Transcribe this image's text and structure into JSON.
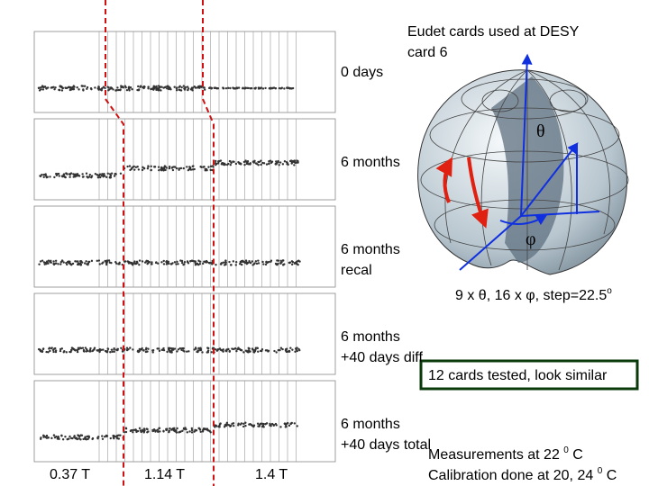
{
  "header": {
    "lines": [
      "Eudet cards used at DESY",
      "card 6"
    ]
  },
  "panels": [
    {
      "label": [
        "0 days"
      ]
    },
    {
      "label": [
        "6 months"
      ]
    },
    {
      "label": [
        "6 months",
        "recal"
      ]
    },
    {
      "label": [
        "6 months",
        "+40 days diff"
      ]
    },
    {
      "label": [
        "6 months",
        "+40 days total"
      ]
    }
  ],
  "sphere": {
    "theta": "θ",
    "phi": "φ",
    "caption": {
      "text": "9 x θ, 16 x φ, step=22.5",
      "sup": "o"
    }
  },
  "note": "12 cards tested, look similar",
  "fields": [
    "0.37 T",
    "1.14 T",
    "1.4 T"
  ],
  "footer": [
    {
      "text": "Measurements at 22 ",
      "sup": "0",
      "after": " C"
    },
    {
      "text": "Calibration done at 20, 24 ",
      "sup": "0",
      "after": " C"
    }
  ]
}
